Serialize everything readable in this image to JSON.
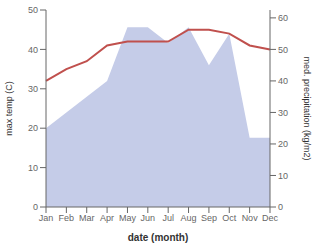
{
  "chart_data": {
    "type": "line",
    "xlabel": "date (month)",
    "ylabel": "max temp (C)",
    "y2label": "med. precipitation (kg/m2)",
    "categories": [
      "Jan",
      "Feb",
      "Mar",
      "Apr",
      "May",
      "Jun",
      "Jul",
      "Aug",
      "Sep",
      "Oct",
      "Nov",
      "Dec"
    ],
    "series": [
      {
        "type": "area",
        "axis": "y2",
        "color": "#c5cce8",
        "values": [
          25,
          30,
          35,
          40,
          57,
          57,
          52,
          57,
          45,
          55,
          22,
          22
        ]
      },
      {
        "type": "line",
        "axis": "y",
        "color": "#c0504d",
        "values": [
          32,
          35,
          37,
          41,
          42,
          42,
          42,
          45,
          45,
          44,
          41,
          40
        ]
      }
    ],
    "ylim": [
      0,
      50
    ],
    "yticks": [
      0,
      10,
      20,
      30,
      40,
      50
    ],
    "y2lim": [
      0,
      62.5
    ],
    "y2ticks": [
      0,
      10,
      20,
      30,
      40,
      50,
      60
    ],
    "grid": false
  }
}
